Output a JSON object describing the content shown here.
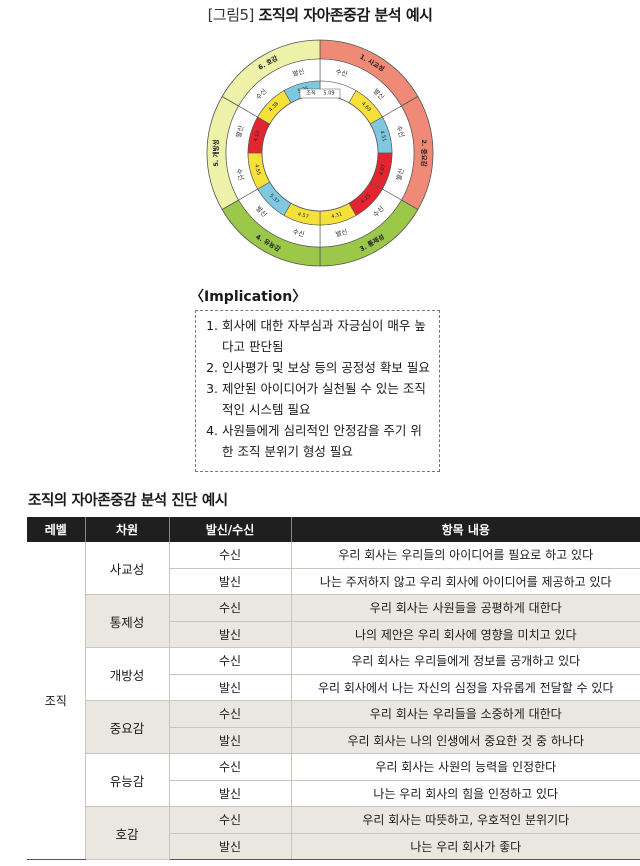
{
  "figure": {
    "tag": "[그림5]",
    "title": "조직의 자아존중감 분석 예시"
  },
  "wheel": {
    "center_label": "조직",
    "center_value": "5.09",
    "sectors": [
      {
        "name": "1. 사교성",
        "color": "#ef8a76",
        "recv_label": "수신",
        "recv_value": "",
        "send_label": "발신",
        "send_value": "4.69",
        "recv_color": "#ffffff",
        "send_color": "#f6e03a"
      },
      {
        "name": "2. 중요감",
        "color": "#ef8a76",
        "recv_label": "수신",
        "recv_value": "4.51",
        "send_label": "발신",
        "send_value": "4.07",
        "recv_color": "#7fc8e0",
        "send_color": "#e3252f"
      },
      {
        "name": "3. 통제성",
        "color": "#9cc84a",
        "recv_label": "수신",
        "recv_value": "4.25",
        "send_label": "발신",
        "send_value": "4.31",
        "recv_color": "#e3252f",
        "send_color": "#f6e03a"
      },
      {
        "name": "4. 유능감",
        "color": "#9cc84a",
        "recv_label": "수신",
        "recv_value": "4.57",
        "send_label": "발신",
        "send_value": "5.37",
        "recv_color": "#f6e03a",
        "send_color": "#7fc8e0"
      },
      {
        "name": "5. 개방성",
        "color": "#eef1a8",
        "recv_label": "수신",
        "recv_value": "4.55",
        "send_label": "발신",
        "send_value": "4.10",
        "recv_color": "#f6e03a",
        "send_color": "#e3252f"
      },
      {
        "name": "6. 호감",
        "color": "#eef1a8",
        "recv_label": "수신",
        "recv_value": "4.38",
        "send_label": "발신",
        "send_value": "5.25",
        "recv_color": "#f6e03a",
        "send_color": "#7fc8e0"
      }
    ],
    "legend": {
      "send_top": "발신",
      "recv_right": "수신"
    }
  },
  "implication": {
    "title": "〈Implication〉",
    "items": [
      "회사에 대한 자부심과 자긍심이 매우 높다고 판단됨",
      "인사평가 및 보상 등의 공정성 확보 필요",
      "제안된 아이디어가 실천될 수 있는 조직적인 시스템 필요",
      "사원들에게 심리적인 안정감을 주기 위한 조직 분위기 형성 필요"
    ]
  },
  "table": {
    "title": "조직의 자아존중감 분석 진단 예시",
    "headers": [
      "레벨",
      "차원",
      "발신/수신",
      "항목 내용"
    ],
    "level": "조직",
    "groups": [
      {
        "dimension": "사교성",
        "rows": [
          {
            "dir": "수신",
            "content": "우리 회사는 우리들의 아이디어를 필요로 하고 있다"
          },
          {
            "dir": "발신",
            "content": "나는 주저하지 않고 우리 회사에 아이디어를 제공하고 있다"
          }
        ]
      },
      {
        "dimension": "통제성",
        "rows": [
          {
            "dir": "수신",
            "content": "우리 회사는 사원들을 공평하게 대한다"
          },
          {
            "dir": "발신",
            "content": "나의 제안은 우리 회사에 영향을 미치고 있다"
          }
        ]
      },
      {
        "dimension": "개방성",
        "rows": [
          {
            "dir": "수신",
            "content": "우리 회사는 우리들에게 정보를 공개하고 있다"
          },
          {
            "dir": "발신",
            "content": "우리 회사에서 나는 자신의 심정을 자유롭게 전달할 수 있다"
          }
        ]
      },
      {
        "dimension": "중요감",
        "rows": [
          {
            "dir": "수신",
            "content": "우리 회사는 우리들을 소중하게 대한다"
          },
          {
            "dir": "발신",
            "content": "우리 회사는 나의 인생에서 중요한 것 중 하나다"
          }
        ]
      },
      {
        "dimension": "유능감",
        "rows": [
          {
            "dir": "수신",
            "content": "우리 회사는 사원의 능력을 인정한다"
          },
          {
            "dir": "발신",
            "content": "나는 우리 회사의 힘을 인정하고 있다"
          }
        ]
      },
      {
        "dimension": "호감",
        "rows": [
          {
            "dir": "수신",
            "content": "우리 회사는 따뜻하고, 우호적인 분위기다"
          },
          {
            "dir": "발신",
            "content": "나는 우리 회사가 좋다"
          }
        ]
      }
    ]
  }
}
